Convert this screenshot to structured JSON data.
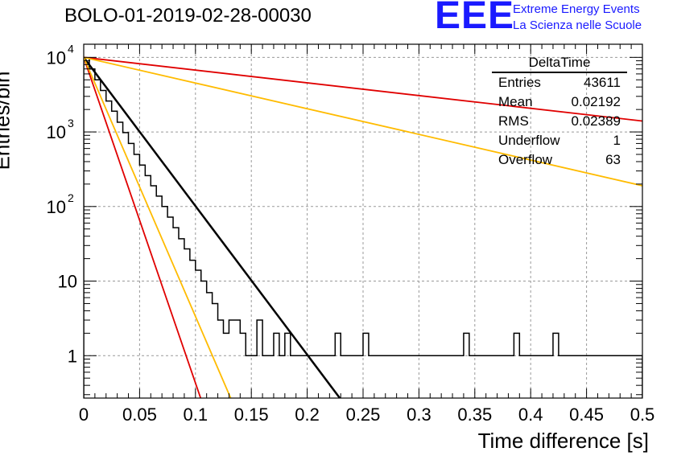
{
  "title": "BOLO-01-2019-02-28-00030",
  "logo": {
    "mark": "EEE",
    "line1": "Extreme Energy Events",
    "line2": "La Scienza nelle Scuole"
  },
  "stats": {
    "title": "DeltaTime",
    "rows": [
      {
        "label": "Entries",
        "value": "43611"
      },
      {
        "label": "Mean",
        "value": "0.02192"
      },
      {
        "label": "RMS",
        "value": "0.02389"
      },
      {
        "label": "Underflow",
        "value": "1"
      },
      {
        "label": "Overflow",
        "value": "63"
      }
    ]
  },
  "colors": {
    "histogram": "#000000",
    "fit": "#000000",
    "red": "#e00000",
    "orange": "#ffbb00",
    "grid": "#999999"
  },
  "chart_data": {
    "type": "line",
    "title": "BOLO-01-2019-02-28-00030",
    "xlabel": "Time difference [s]",
    "ylabel": "Entries/bin",
    "xlim": [
      0,
      0.5
    ],
    "ylim": [
      0.27,
      15000
    ],
    "yscale": "log",
    "grid": true,
    "xticks": [
      "0",
      "0.05",
      "0.1",
      "0.15",
      "0.2",
      "0.25",
      "0.3",
      "0.35",
      "0.4",
      "0.45",
      "0.5"
    ],
    "xtick_values": [
      0,
      0.05,
      0.1,
      0.15,
      0.2,
      0.25,
      0.3,
      0.35,
      0.4,
      0.45,
      0.5
    ],
    "yticks": [
      {
        "value": 1,
        "label": "1"
      },
      {
        "value": 10,
        "label": "10"
      },
      {
        "value": 100,
        "label": "10",
        "exp": "2"
      },
      {
        "value": 1000,
        "label": "10",
        "exp": "3"
      },
      {
        "value": 10000,
        "label": "10",
        "exp": "4"
      }
    ],
    "histogram": {
      "bin_width": 0.005,
      "counts": [
        9800,
        7000,
        5000,
        3600,
        2600,
        1900,
        1350,
        980,
        700,
        500,
        360,
        260,
        190,
        138,
        100,
        72,
        52,
        37,
        27,
        19,
        14,
        10,
        7,
        5,
        3,
        2,
        3,
        3,
        2,
        1,
        1,
        3,
        1,
        1,
        2,
        1,
        2,
        1,
        1,
        1,
        1,
        1,
        1,
        1,
        1,
        2,
        1,
        1,
        1,
        1,
        2,
        1,
        1,
        1,
        1,
        1,
        1,
        1,
        1,
        1,
        1,
        1,
        1,
        1,
        1,
        1,
        1,
        1,
        2,
        1,
        1,
        1,
        1,
        1,
        1,
        1,
        1,
        2,
        1,
        1,
        1,
        1,
        1,
        1,
        2,
        1,
        1,
        1,
        1,
        1,
        1,
        1,
        1,
        1,
        1,
        1,
        1,
        1,
        1,
        1
      ]
    },
    "series": [
      {
        "color": "black",
        "x0": 0,
        "y0": 10000,
        "x1": 0.23,
        "y1": 0.26
      },
      {
        "color": "red",
        "x0": 0,
        "y0": 10000,
        "x1": 0.105,
        "y1": 0.26
      },
      {
        "color": "orange",
        "x0": 0,
        "y0": 10000,
        "x1": 0.132,
        "y1": 0.26
      },
      {
        "color": "red",
        "x0": 0,
        "y0": 10000,
        "x1": 0.5,
        "y1": 1400
      },
      {
        "color": "orange",
        "x0": 0,
        "y0": 10000,
        "x1": 0.5,
        "y1": 190
      }
    ]
  }
}
